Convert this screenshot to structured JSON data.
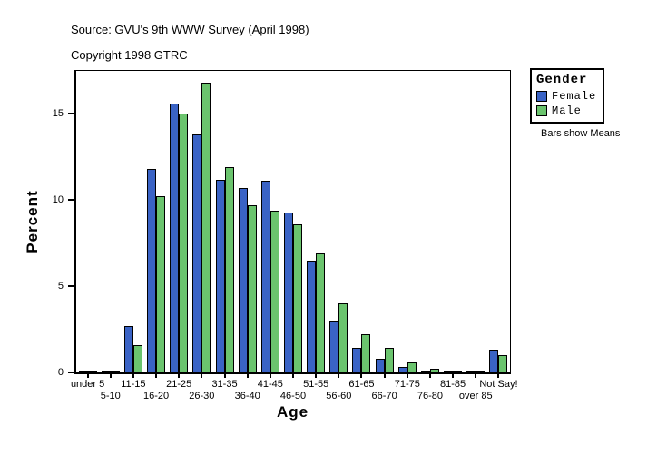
{
  "header": {
    "source_line": "Source: GVU's 9th WWW Survey (April 1998)",
    "copyright_line": "Copyright 1998 GTRC"
  },
  "legend": {
    "title": "Gender",
    "note": "Bars show Means"
  },
  "chart_data": {
    "type": "bar",
    "title": "",
    "xlabel": "Age",
    "ylabel": "Percent",
    "categories": [
      "under 5",
      "5-10",
      "11-15",
      "16-20",
      "21-25",
      "26-30",
      "31-35",
      "36-40",
      "41-45",
      "46-50",
      "51-55",
      "56-60",
      "61-65",
      "66-70",
      "71-75",
      "76-80",
      "81-85",
      "over 85",
      "Not Say!"
    ],
    "series": [
      {
        "name": "Female",
        "color": "#3a63c5",
        "values": [
          0.05,
          0.05,
          2.7,
          11.8,
          15.6,
          13.8,
          11.2,
          10.7,
          11.1,
          9.3,
          6.5,
          3.0,
          1.4,
          0.8,
          0.3,
          0.1,
          0.05,
          0.05,
          1.3
        ]
      },
      {
        "name": "Male",
        "color": "#6bc46e",
        "values": [
          0.05,
          0.05,
          1.6,
          10.2,
          15.0,
          16.8,
          11.9,
          9.7,
          9.4,
          8.6,
          6.9,
          4.0,
          2.2,
          1.4,
          0.6,
          0.2,
          0.1,
          0.05,
          1.0
        ]
      }
    ],
    "ylim": [
      0,
      17.5
    ],
    "yticks": [
      0,
      5,
      10,
      15
    ],
    "grid": false,
    "legend_position": "right",
    "annotation": "Bars show Means"
  }
}
